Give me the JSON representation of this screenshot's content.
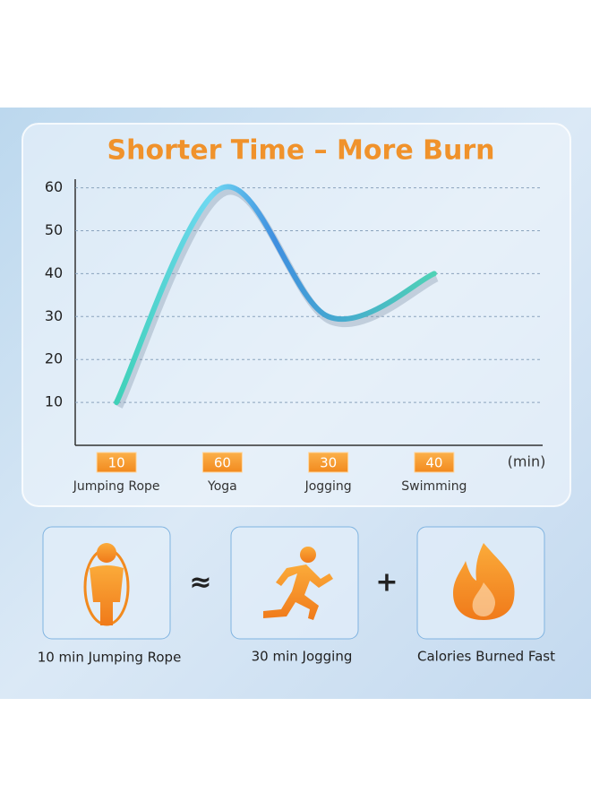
{
  "chart_data": {
    "type": "line",
    "title": "Shorter Time – More Burn",
    "categories": [
      "Jumping Rope",
      "Yoga",
      "Jogging",
      "Swimming"
    ],
    "values": [
      10,
      60,
      30,
      40
    ],
    "xlabel": "(min)",
    "ylim": [
      0,
      62
    ],
    "yticks": [
      10,
      20,
      30,
      40,
      50,
      60
    ],
    "grid": true,
    "color": "#4fc3d9"
  },
  "equation": {
    "items": [
      {
        "label": "10 min Jumping Rope"
      },
      {
        "label": "30 min Jogging"
      },
      {
        "label": "Calories Burned Fast"
      }
    ],
    "operators": [
      "≈",
      "+"
    ]
  }
}
